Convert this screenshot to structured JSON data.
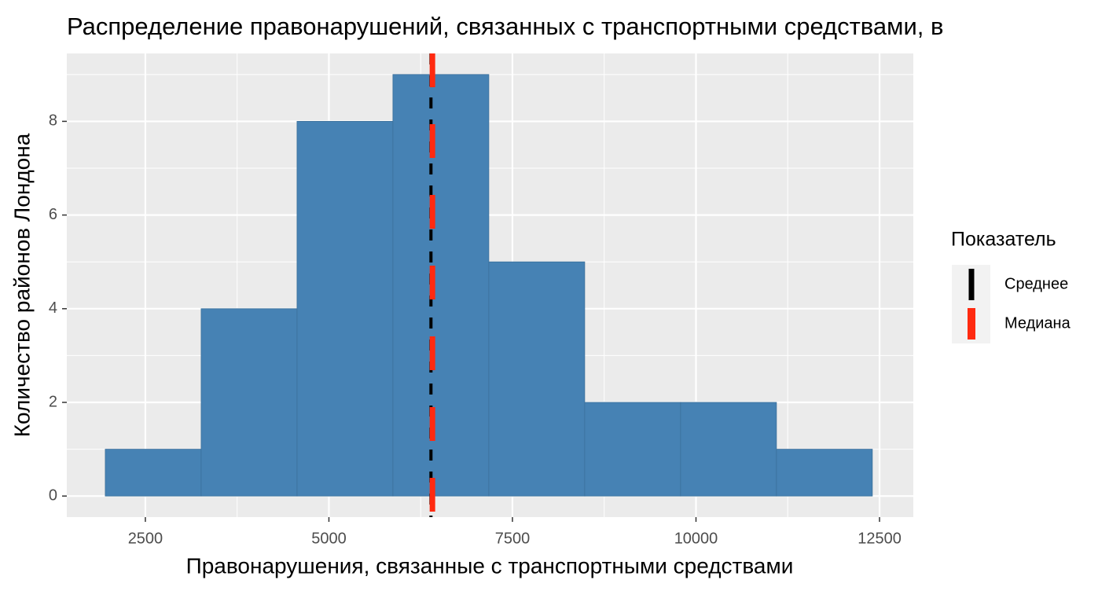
{
  "chart_data": {
    "type": "histogram",
    "title": "Распределение правонарушений, связанных с транспортными средствами, в",
    "x_label": "Правонарушения, связанные с транспортными средствами",
    "y_label": "Количество районов Лондона",
    "bins": [
      1954,
      3260,
      4566,
      5872,
      7178,
      8484,
      9790,
      11096,
      12402
    ],
    "counts": [
      1,
      4,
      8,
      9,
      5,
      2,
      2,
      1
    ],
    "color": "#4682b4",
    "xlim": [
      1430,
      12960
    ],
    "xticks": [
      2500,
      5000,
      7500,
      10000,
      12500
    ],
    "ylim": [
      -0.45,
      9.45
    ],
    "yticks": [
      0,
      2,
      4,
      6,
      8
    ],
    "x_minor_gridlines": [
      3750,
      6250,
      8750,
      11250
    ],
    "y_minor_gridlines": [
      1,
      3,
      5,
      7,
      9
    ],
    "grid": true,
    "legend_title": "Показатель",
    "legend_position": "right",
    "vlines": [
      {
        "name": "Среднее",
        "color": "#000000",
        "value": 6390,
        "dash": "14 14",
        "width": 4
      },
      {
        "name": "Медиана",
        "color": "#ff2a10",
        "value": 6410,
        "dash": "43 47",
        "width": 7
      }
    ]
  }
}
